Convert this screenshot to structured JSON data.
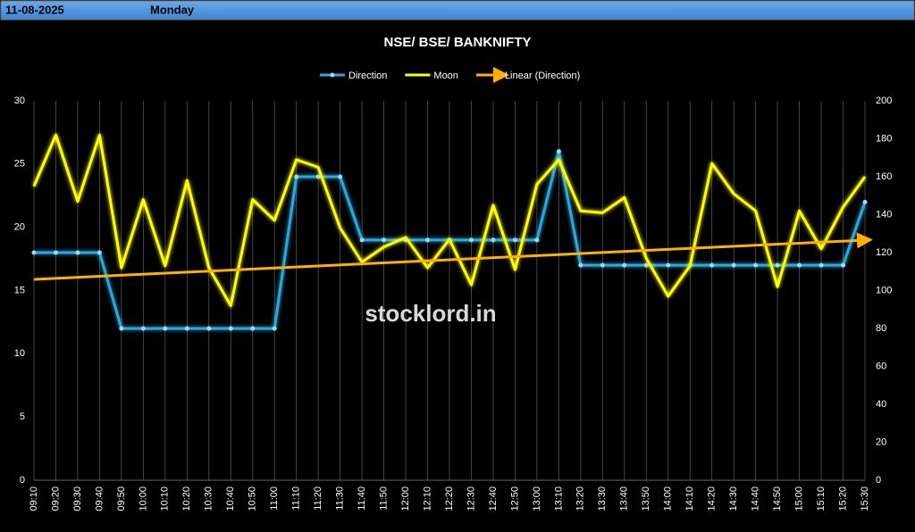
{
  "header": {
    "date": "11-08-2025",
    "day": "Monday"
  },
  "watermark": "stocklord.in",
  "chart_data": {
    "type": "line",
    "title": "NSE/ BSE/ BANKNIFTY",
    "categories": [
      "09:10",
      "09:20",
      "09:30",
      "09:40",
      "09:50",
      "10:00",
      "10:10",
      "10:20",
      "10:30",
      "10:40",
      "10:50",
      "11:00",
      "11:10",
      "11:20",
      "11:30",
      "11:40",
      "11:50",
      "12:00",
      "12:10",
      "12:20",
      "12:30",
      "12:40",
      "12:50",
      "13:00",
      "13:10",
      "13:20",
      "13:30",
      "13:40",
      "13:50",
      "14:00",
      "14:10",
      "14:20",
      "14:30",
      "14:40",
      "14:50",
      "15:00",
      "15:10",
      "15:20",
      "15:30"
    ],
    "series": [
      {
        "name": "Direction",
        "color": "#29a8e0",
        "axis": "y",
        "values": [
          18,
          18,
          18,
          18,
          12,
          12,
          12,
          12,
          12,
          12,
          12,
          12,
          24,
          24,
          24,
          19,
          19,
          19,
          19,
          19,
          19,
          19,
          19,
          19,
          26,
          17,
          17,
          17,
          17,
          17,
          17,
          17,
          17,
          17,
          17,
          17,
          17,
          17,
          22
        ]
      },
      {
        "name": "Moon",
        "color": "#ffff00",
        "axis": "y2",
        "values": [
          155,
          182,
          147,
          182,
          112,
          148,
          113,
          158,
          112,
          92,
          148,
          137,
          169,
          165,
          133,
          115,
          123,
          128,
          112,
          127,
          103,
          145,
          111,
          156,
          169,
          142,
          141,
          149,
          117,
          97,
          113,
          167,
          151,
          142,
          102,
          142,
          122,
          144,
          160
        ]
      }
    ],
    "trendline": {
      "name": "Linear (Direction)",
      "color": "#ffb000"
    },
    "ylim": [
      0,
      30
    ],
    "yticks": [
      0,
      5,
      10,
      15,
      20,
      25,
      30
    ],
    "y2lim": [
      0,
      200
    ],
    "y2ticks": [
      0,
      20,
      40,
      60,
      80,
      100,
      120,
      140,
      160,
      180,
      200
    ],
    "grid": true
  }
}
